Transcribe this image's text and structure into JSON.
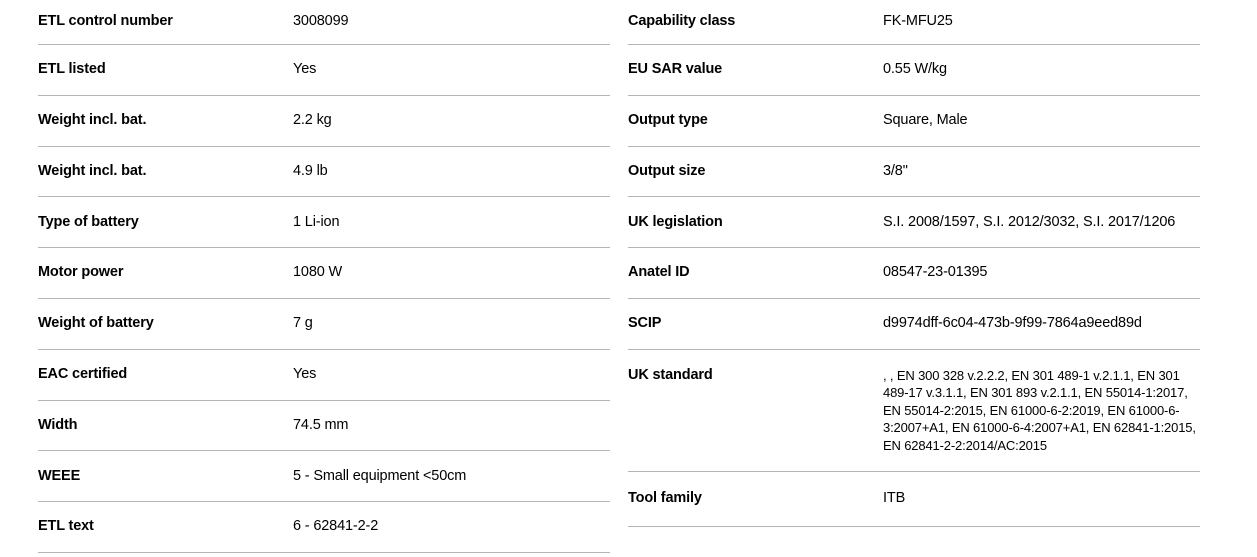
{
  "page": {
    "background_color": "#ffffff",
    "divider_color": "#b4b4b4",
    "text_color": "#000000"
  },
  "spec_table": {
    "left_column": {
      "rows": [
        {
          "label": "ETL control number",
          "value": "3008099"
        },
        {
          "label": "ETL listed",
          "value": "Yes"
        },
        {
          "label": "Weight incl. bat.",
          "value": "2.2 kg"
        },
        {
          "label": "Weight incl. bat.",
          "value": "4.9 lb"
        },
        {
          "label": "Type of battery",
          "value": "1 Li-ion"
        },
        {
          "label": "Motor power",
          "value": "1080 W"
        },
        {
          "label": "Weight of battery",
          "value": "7 g"
        },
        {
          "label": "EAC certified",
          "value": "Yes"
        },
        {
          "label": "Width",
          "value": "74.5 mm"
        },
        {
          "label": "WEEE",
          "value": "5 - Small equipment <50cm"
        },
        {
          "label": "ETL text",
          "value": "6 - 62841-2-2"
        }
      ]
    },
    "right_column": {
      "rows": [
        {
          "label": "Capability class",
          "value": "FK-MFU25"
        },
        {
          "label": "EU SAR value",
          "value": "0.55 W/kg"
        },
        {
          "label": "Output type",
          "value": "Square, Male"
        },
        {
          "label": "Output size",
          "value": "3/8\""
        },
        {
          "label": "UK legislation",
          "value": "S.I. 2008/1597, S.I. 2012/3032, S.I. 2017/1206"
        },
        {
          "label": "Anatel ID",
          "value": "08547-23-01395"
        },
        {
          "label": "SCIP",
          "value": "d9974dff-6c04-473b-9f99-7864a9eed89d"
        },
        {
          "label": "UK standard",
          "value": ", , EN 300 328 v.2.2.2, EN 301 489-1 v.2.1.1, EN 301 489-17 v.3.1.1, EN 301 893 v.2.1.1, EN 55014-1:2017, EN 55014-2:2015, EN 61000-6-2:2019, EN 61000-6-3:2007+A1, EN 61000-6-4:2007+A1, EN 62841-1:2015, EN 62841-2-2:2014/AC:2015"
        },
        {
          "label": "Tool family",
          "value": "ITB"
        }
      ]
    }
  }
}
